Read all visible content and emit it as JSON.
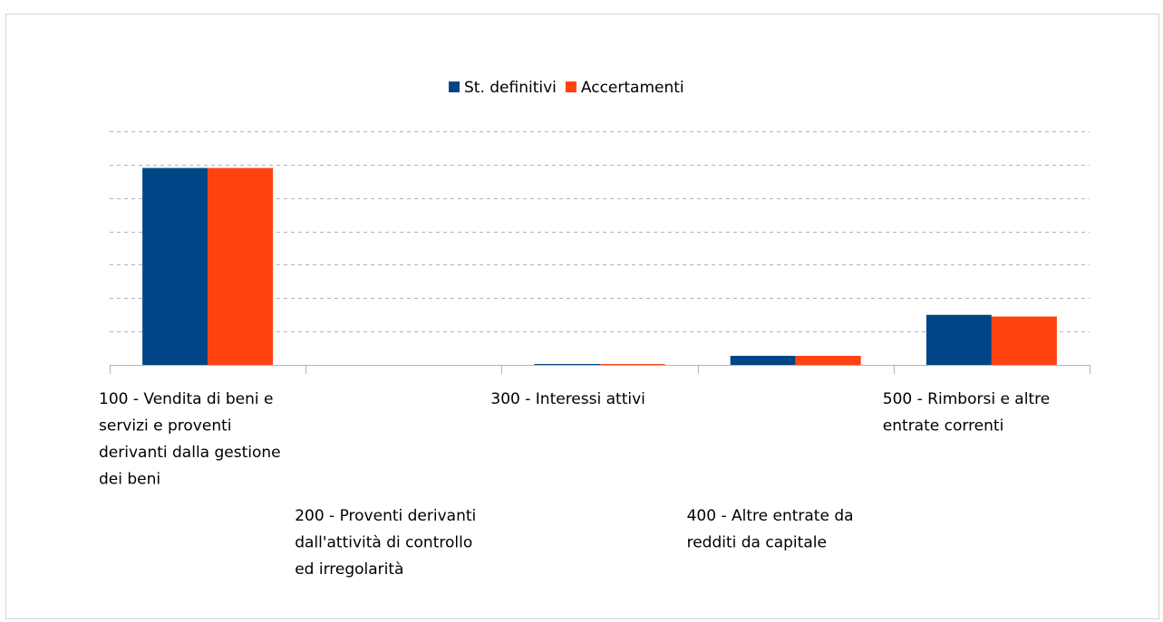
{
  "chart_data": {
    "type": "bar",
    "categories": [
      "100 - Vendita di beni e servizi e proventi derivanti dalla gestione dei beni",
      "200 - Proventi derivanti dall'attività di controllo ed irregolarità",
      "300 - Interessi attivi",
      "400 - Altre entrate da redditi da capitale",
      "500 - Rimborsi e altre entrate correnti"
    ],
    "category_lines": [
      [
        "100 - Vendita di beni e",
        "servizi e proventi",
        "derivanti dalla gestione",
        "dei beni"
      ],
      [
        "200 - Proventi derivanti",
        "dall'attività di controllo",
        "ed irregolarità"
      ],
      [
        "300 - Interessi attivi"
      ],
      [
        "400 - Altre entrate da",
        "redditi da capitale"
      ],
      [
        "500 - Rimborsi e altre",
        "entrate correnti"
      ]
    ],
    "series": [
      {
        "name": "St. definitivi",
        "color": "#004586",
        "values": [
          5.9,
          0,
          0.02,
          0.27,
          1.5
        ]
      },
      {
        "name": "Accertamenti",
        "color": "#ff420e",
        "values": [
          5.9,
          0,
          0.02,
          0.27,
          1.45
        ]
      }
    ],
    "ylim": [
      0,
      7
    ],
    "gridlines": true,
    "legend_position": "top-center",
    "title": "",
    "xlabel": "",
    "ylabel": ""
  }
}
